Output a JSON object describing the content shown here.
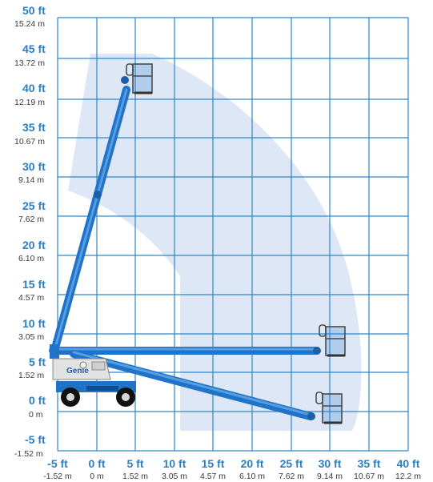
{
  "diagram": {
    "type": "working-envelope",
    "colors": {
      "grid": "#2f86c8",
      "envelope": "#dce6f4",
      "boom": "#1f73c8",
      "label_ft": "#2a7fc4",
      "label_m": "#3a3a3a"
    },
    "y_axis": [
      {
        "ft": "50 ft",
        "m": "15.24 m",
        "value": 50
      },
      {
        "ft": "45 ft",
        "m": "13.72 m",
        "value": 45
      },
      {
        "ft": "40 ft",
        "m": "12.19 m",
        "value": 40
      },
      {
        "ft": "35 ft",
        "m": "10.67 m",
        "value": 35
      },
      {
        "ft": "30 ft",
        "m": "9.14 m",
        "value": 30
      },
      {
        "ft": "25 ft",
        "m": "7.62 m",
        "value": 25
      },
      {
        "ft": "20 ft",
        "m": "6.10 m",
        "value": 20
      },
      {
        "ft": "15 ft",
        "m": "4.57 m",
        "value": 15
      },
      {
        "ft": "10 ft",
        "m": "3.05 m",
        "value": 10
      },
      {
        "ft": "5 ft",
        "m": "1.52 m",
        "value": 5
      },
      {
        "ft": "0 ft",
        "m": "0 m",
        "value": 0
      },
      {
        "ft": "-5 ft",
        "m": "-1.52 m",
        "value": -5
      }
    ],
    "x_axis": [
      {
        "ft": "-5 ft",
        "m": "-1.52 m",
        "value": -5
      },
      {
        "ft": "0 ft",
        "m": "0 m",
        "value": 0
      },
      {
        "ft": "5 ft",
        "m": "1.52 m",
        "value": 5
      },
      {
        "ft": "10 ft",
        "m": "3.05 m",
        "value": 10
      },
      {
        "ft": "15 ft",
        "m": "4.57 m",
        "value": 15
      },
      {
        "ft": "20 ft",
        "m": "6.10 m",
        "value": 20
      },
      {
        "ft": "25 ft",
        "m": "7.62 m",
        "value": 25
      },
      {
        "ft": "30 ft",
        "m": "9.14 m",
        "value": 30
      },
      {
        "ft": "35 ft",
        "m": "10.67 m",
        "value": 35
      },
      {
        "ft": "40 ft",
        "m": "12.2 m",
        "value": 40
      }
    ],
    "machine_logo": "Genie"
  }
}
